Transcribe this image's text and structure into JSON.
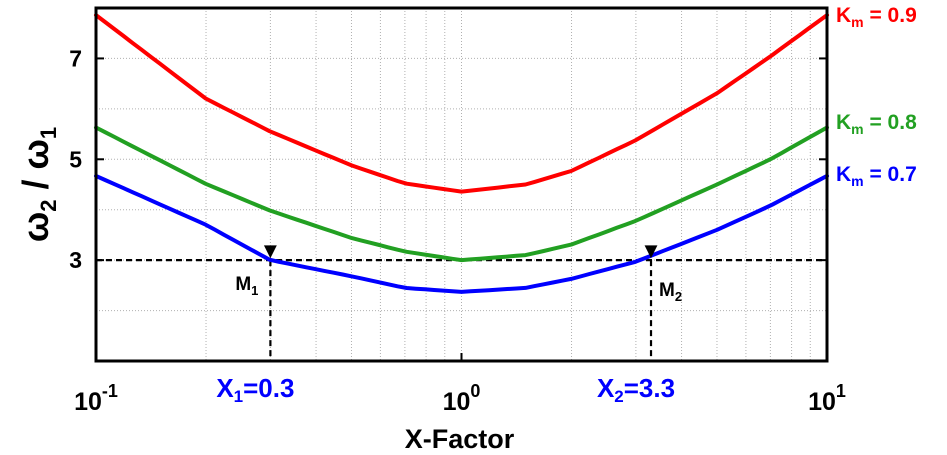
{
  "chart_data": {
    "type": "line",
    "xlabel": "X-Factor",
    "ylabel": {
      "base1": "ω",
      "sub1": "2",
      "sep": " / ",
      "base2": "ω",
      "sub2": "1"
    },
    "xscale": "log",
    "xlim": [
      0.1,
      10
    ],
    "ylim": [
      1,
      8
    ],
    "grid": true,
    "x_ticks": [
      {
        "value": 0.1,
        "base": "10",
        "exp": "-1"
      },
      {
        "value": 1,
        "base": "10",
        "exp": "0"
      },
      {
        "value": 10,
        "base": "10",
        "exp": "1"
      }
    ],
    "y_ticks": [
      {
        "value": 3,
        "label": "3"
      },
      {
        "value": 5,
        "label": "5"
      },
      {
        "value": 7,
        "label": "7"
      }
    ],
    "series": [
      {
        "name": "0.9",
        "color": "#ff0000",
        "x": [
          0.1,
          0.2,
          0.3,
          0.5,
          0.7,
          1,
          1.5,
          2,
          3,
          5,
          7,
          10
        ],
        "y": [
          7.86,
          6.2,
          5.55,
          4.88,
          4.52,
          4.36,
          4.5,
          4.77,
          5.38,
          6.31,
          7.04,
          7.86
        ]
      },
      {
        "name": "0.8",
        "color": "#22a022",
        "x": [
          0.1,
          0.2,
          0.3,
          0.5,
          0.7,
          1,
          1.5,
          2,
          3,
          5,
          7,
          10
        ],
        "y": [
          5.63,
          4.51,
          3.98,
          3.44,
          3.17,
          3.0,
          3.1,
          3.31,
          3.78,
          4.5,
          5.0,
          5.63
        ]
      },
      {
        "name": "0.7",
        "color": "#0000ff",
        "x": [
          0.1,
          0.2,
          0.3,
          0.5,
          0.7,
          1,
          1.5,
          2,
          3,
          5,
          7,
          10
        ],
        "y": [
          4.67,
          3.7,
          3.0,
          2.68,
          2.45,
          2.37,
          2.45,
          2.63,
          2.97,
          3.6,
          4.08,
          4.67
        ]
      }
    ],
    "legend_labels": [
      {
        "series": 0,
        "base": "K",
        "sub": "m",
        "text": " = 0.9"
      },
      {
        "series": 1,
        "base": "K",
        "sub": "m",
        "text": " = 0.8"
      },
      {
        "series": 2,
        "base": "K",
        "sub": "m",
        "text": " = 0.7"
      }
    ],
    "reference_line": {
      "y": 3
    },
    "annotations": [
      {
        "x": 0.3,
        "y": 3,
        "marker": "▼",
        "label_base": "M",
        "label_sub": "1",
        "x_label_base": "X",
        "x_label_sub": "1",
        "x_label_text": "=0.3"
      },
      {
        "x": 3.3,
        "y": 3,
        "marker": "▼",
        "label_base": "M",
        "label_sub": "2",
        "x_label_base": "X",
        "x_label_sub": "2",
        "x_label_text": "=3.3"
      }
    ]
  }
}
